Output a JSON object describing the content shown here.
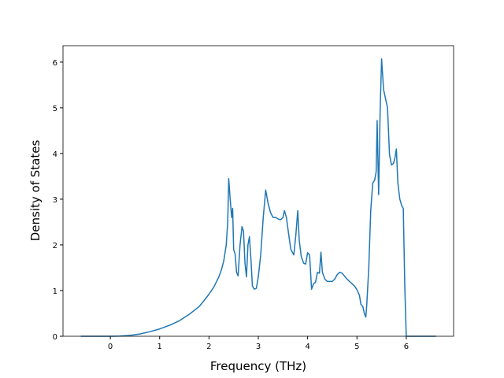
{
  "chart_data": {
    "type": "line",
    "xlabel": "Frequency (THz)",
    "ylabel": "Density of States",
    "x": [
      -0.6,
      0,
      0.2,
      0.4,
      0.6,
      0.8,
      1.0,
      1.2,
      1.4,
      1.6,
      1.8,
      1.9,
      2.0,
      2.1,
      2.2,
      2.25,
      2.3,
      2.35,
      2.38,
      2.4,
      2.43,
      2.46,
      2.48,
      2.5,
      2.53,
      2.56,
      2.59,
      2.63,
      2.67,
      2.7,
      2.73,
      2.76,
      2.79,
      2.82,
      2.85,
      2.88,
      2.92,
      2.96,
      3.0,
      3.05,
      3.1,
      3.15,
      3.2,
      3.25,
      3.3,
      3.35,
      3.4,
      3.45,
      3.5,
      3.53,
      3.57,
      3.62,
      3.66,
      3.72,
      3.76,
      3.8,
      3.83,
      3.87,
      3.92,
      3.96,
      4.0,
      4.04,
      4.08,
      4.12,
      4.16,
      4.2,
      4.24,
      4.27,
      4.3,
      4.35,
      4.4,
      4.5,
      4.55,
      4.6,
      4.65,
      4.7,
      4.8,
      4.9,
      4.95,
      5.0,
      5.05,
      5.08,
      5.12,
      5.15,
      5.18,
      5.2,
      5.24,
      5.28,
      5.32,
      5.36,
      5.39,
      5.41,
      5.44,
      5.47,
      5.5,
      5.54,
      5.58,
      5.62,
      5.66,
      5.7,
      5.74,
      5.77,
      5.8,
      5.83,
      5.87,
      5.91,
      5.94,
      5.97,
      6.0,
      6.6
    ],
    "series": [
      {
        "name": "DOS",
        "color": "#1f77b4",
        "values": [
          0,
          0,
          0.005,
          0.02,
          0.05,
          0.1,
          0.16,
          0.24,
          0.34,
          0.48,
          0.65,
          0.78,
          0.92,
          1.08,
          1.3,
          1.45,
          1.65,
          2.0,
          2.5,
          3.45,
          3.0,
          2.6,
          2.8,
          1.9,
          1.8,
          1.4,
          1.32,
          2.0,
          2.4,
          2.3,
          1.6,
          1.3,
          2.0,
          2.18,
          1.7,
          1.1,
          1.03,
          1.05,
          1.3,
          1.8,
          2.6,
          3.2,
          2.9,
          2.7,
          2.6,
          2.6,
          2.57,
          2.55,
          2.6,
          2.75,
          2.6,
          2.2,
          1.9,
          1.78,
          2.2,
          2.75,
          2.1,
          1.75,
          1.6,
          1.58,
          1.83,
          1.78,
          1.03,
          1.15,
          1.18,
          1.4,
          1.38,
          1.84,
          1.4,
          1.25,
          1.2,
          1.2,
          1.25,
          1.35,
          1.4,
          1.38,
          1.25,
          1.15,
          1.1,
          1.02,
          0.9,
          0.7,
          0.65,
          0.5,
          0.42,
          0.7,
          1.5,
          2.75,
          3.35,
          3.42,
          3.6,
          4.72,
          3.1,
          4.9,
          6.07,
          5.4,
          5.2,
          5.0,
          3.98,
          3.75,
          3.78,
          3.9,
          4.1,
          3.35,
          3.0,
          2.85,
          2.8,
          1.1,
          0,
          0
        ]
      }
    ],
    "xlim": [
      -0.96,
      6.96
    ],
    "xticks": [
      0,
      1,
      2,
      3,
      4,
      5,
      6
    ],
    "ylim": [
      0,
      6.36
    ],
    "yticks": [
      0,
      1,
      2,
      3,
      4,
      5,
      6
    ]
  }
}
